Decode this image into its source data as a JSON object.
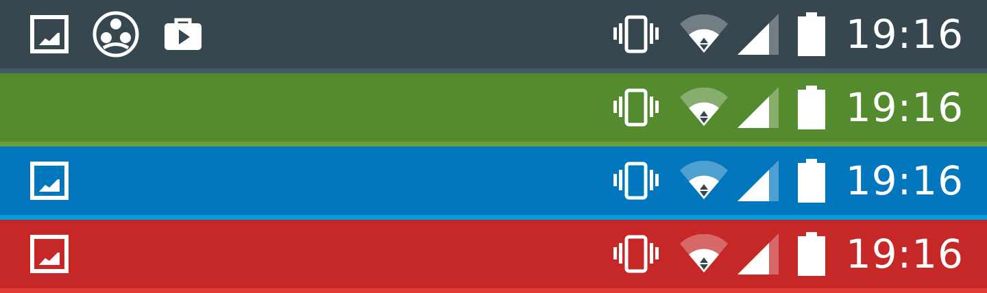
{
  "status_bars": [
    {
      "theme": "dark",
      "color": "#37474f",
      "edge_color": "#455a64",
      "notification_icons": [
        "image-icon",
        "hangouts-icon",
        "play-store-icon"
      ],
      "status_icons": [
        "vibrate-icon",
        "wifi-icon",
        "signal-icon",
        "battery-icon"
      ],
      "time": "19:16"
    },
    {
      "theme": "green",
      "color": "#558b2f",
      "edge_color": "#689f38",
      "notification_icons": [],
      "status_icons": [
        "vibrate-icon",
        "wifi-icon",
        "signal-icon",
        "battery-icon"
      ],
      "time": "19:16"
    },
    {
      "theme": "blue",
      "color": "#0277bd",
      "edge_color": "#039be5",
      "notification_icons": [
        "image-icon"
      ],
      "status_icons": [
        "vibrate-icon",
        "wifi-icon",
        "signal-icon",
        "battery-icon"
      ],
      "time": "19:16"
    },
    {
      "theme": "red",
      "color": "#c62828",
      "edge_color": "#e53935",
      "notification_icons": [
        "image-icon"
      ],
      "status_icons": [
        "vibrate-icon",
        "wifi-icon",
        "signal-icon",
        "battery-icon"
      ],
      "time": "19:16"
    }
  ]
}
